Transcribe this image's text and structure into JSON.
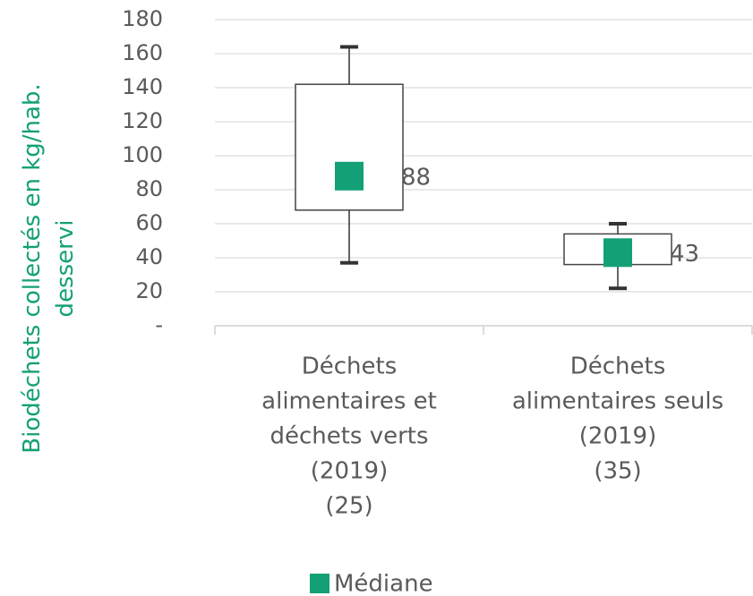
{
  "chart_data": {
    "type": "box",
    "ylabel": [
      "Biodéchets collectés en kg/hab.",
      "desservi"
    ],
    "categories": [
      [
        "Déchets",
        "alimentaires et",
        "déchets verts",
        "(2019)",
        "(25)"
      ],
      [
        "Déchets",
        "alimentaires seuls",
        "(2019)",
        "(35)"
      ]
    ],
    "series": [
      {
        "name": "Médiane",
        "color": "#13a077",
        "values": [
          88,
          43
        ]
      }
    ],
    "whisker_low": [
      37,
      22
    ],
    "q1": [
      68,
      36
    ],
    "q3": [
      142,
      54
    ],
    "whisker_high": [
      164,
      60
    ],
    "ylim": [
      0,
      180
    ],
    "yticks": [
      {
        "value": 0,
        "label": "-"
      },
      20,
      40,
      60,
      80,
      100,
      120,
      140,
      160,
      180
    ],
    "grid": true,
    "label_color": "#13a077"
  }
}
